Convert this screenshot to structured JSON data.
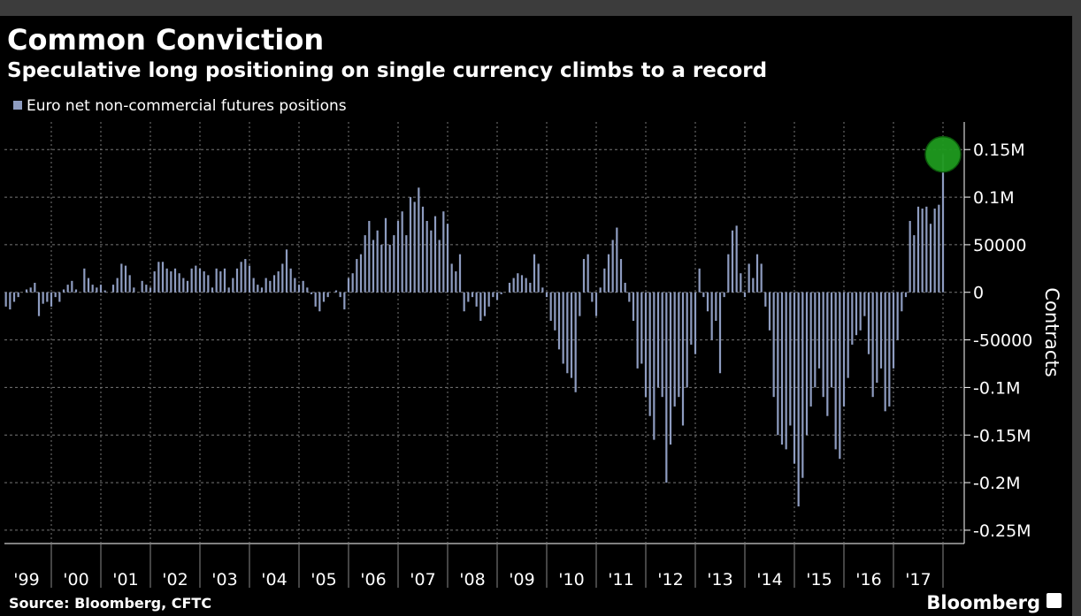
{
  "chart_data": {
    "type": "bar",
    "title": "Common Conviction",
    "subtitle": "Speculative long positioning on single currency climbs to a record",
    "legend": "Euro net non-commercial futures positions",
    "y_axis_label": "Contracts",
    "source": "Source: Bloomberg, CFTC",
    "brand": "Bloomberg",
    "color": "#8e9cc0",
    "highlight_color": "#1f9a1f",
    "grid": true,
    "year_labels": [
      "'99",
      "'00",
      "'01",
      "'02",
      "'03",
      "'04",
      "'05",
      "'06",
      "'07",
      "'08",
      "'09",
      "'10",
      "'11",
      "'12",
      "'13",
      "'14",
      "'15",
      "'16",
      "'17"
    ],
    "values": [
      -15000,
      -18000,
      -10000,
      -5000,
      0,
      3000,
      5000,
      10000,
      -25000,
      -12000,
      -10000,
      -15000,
      -5000,
      -10000,
      3000,
      8000,
      12000,
      3000,
      0,
      25000,
      15000,
      8000,
      5000,
      8000,
      2000,
      0,
      8000,
      15000,
      30000,
      28000,
      18000,
      5000,
      0,
      12000,
      8000,
      5000,
      22000,
      32000,
      32000,
      25000,
      22000,
      25000,
      20000,
      15000,
      12000,
      25000,
      28000,
      25000,
      22000,
      18000,
      5000,
      25000,
      22000,
      25000,
      5000,
      15000,
      25000,
      32000,
      35000,
      28000,
      15000,
      8000,
      5000,
      15000,
      12000,
      18000,
      22000,
      30000,
      45000,
      25000,
      15000,
      8000,
      12000,
      5000,
      -2000,
      -15000,
      -20000,
      -10000,
      -5000,
      0,
      2000,
      -5000,
      -18000,
      15000,
      20000,
      35000,
      40000,
      60000,
      75000,
      55000,
      65000,
      50000,
      78000,
      50000,
      60000,
      75000,
      85000,
      60000,
      100000,
      95000,
      110000,
      90000,
      75000,
      65000,
      80000,
      55000,
      85000,
      72000,
      30000,
      22000,
      40000,
      -20000,
      -10000,
      -5000,
      -15000,
      -30000,
      -25000,
      -15000,
      -5000,
      -8000,
      -2000,
      0,
      10000,
      15000,
      20000,
      18000,
      15000,
      10000,
      40000,
      30000,
      5000,
      -5000,
      -30000,
      -40000,
      -60000,
      -75000,
      -85000,
      -90000,
      -105000,
      -25000,
      35000,
      40000,
      -10000,
      -25000,
      5000,
      25000,
      40000,
      55000,
      68000,
      35000,
      10000,
      -10000,
      -30000,
      -80000,
      -75000,
      -110000,
      -130000,
      -155000,
      -100000,
      -110000,
      -200000,
      -160000,
      -120000,
      -110000,
      -140000,
      -100000,
      -55000,
      -65000,
      25000,
      -5000,
      -20000,
      -50000,
      -30000,
      -85000,
      -5000,
      40000,
      65000,
      70000,
      20000,
      -5000,
      30000,
      15000,
      40000,
      30000,
      -15000,
      -40000,
      -110000,
      -150000,
      -160000,
      -165000,
      -140000,
      -180000,
      -225000,
      -195000,
      -150000,
      -120000,
      -100000,
      -80000,
      -110000,
      -130000,
      -100000,
      -165000,
      -175000,
      -120000,
      -90000,
      -55000,
      -45000,
      -40000,
      -25000,
      -65000,
      -110000,
      -95000,
      -80000,
      -125000,
      -120000,
      -80000,
      -50000,
      -20000,
      -5000,
      75000,
      60000,
      90000,
      88000,
      90000,
      72000,
      88000,
      92000,
      145000
    ],
    "ylim": [
      -264000,
      179000
    ],
    "yticks": [
      {
        "value": 150000,
        "label": "0.15M"
      },
      {
        "value": 100000,
        "label": "0.1M"
      },
      50000,
      0,
      -50000,
      {
        "value": -100000,
        "label": "-0.1M"
      },
      {
        "value": -150000,
        "label": "-0.15M"
      },
      {
        "value": -200000,
        "label": "-0.2M"
      },
      {
        "value": -250000,
        "label": "-0.25M"
      }
    ]
  }
}
